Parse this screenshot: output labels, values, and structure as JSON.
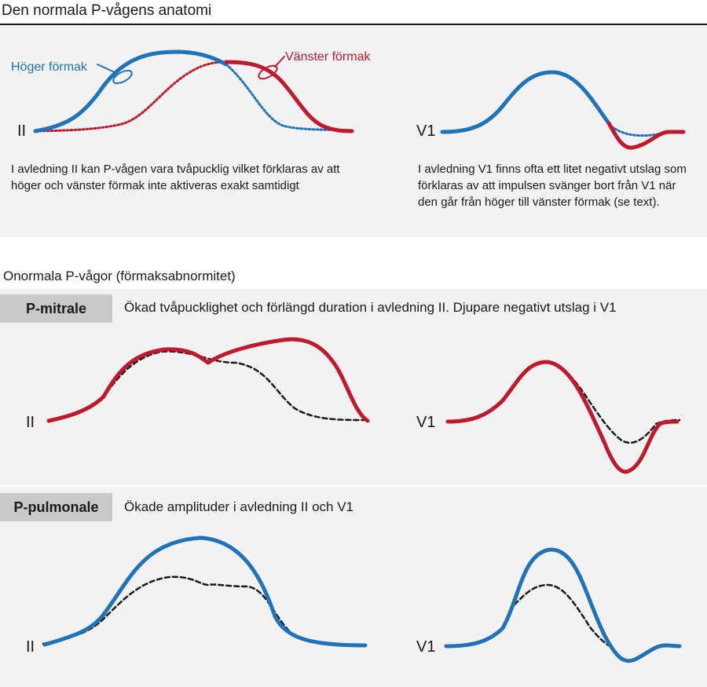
{
  "header": {
    "title": "Den normala P-vågens anatomi"
  },
  "normal": {
    "left_lead": "II",
    "right_lead": "V1",
    "label_right_atrium": "Höger förmak",
    "label_left_atrium": "Vänster förmak",
    "note_left": "I avledning II kan P-vågen vara tvåpucklig vilket förklaras av att höger och vänster förmak inte aktiveras exakt samtidigt",
    "note_right": "I avledning V1 finns ofta ett litet negativt utslag som förklaras av att impulsen svänger bort från V1 när den går från höger till vänster förmak (se text)."
  },
  "abnormal": {
    "title": "Onormala P-vågor (förmaksabnormitet)",
    "p_mitrale": {
      "tag": "P-mitrale",
      "description": "Ökad tvåpucklighet och förlängd duration i avledning II. Djupare negativt utslag i V1",
      "left_lead": "II",
      "right_lead": "V1"
    },
    "p_pulmonale": {
      "tag": "P-pulmonale",
      "description": "Ökade amplituder i avledning II och V1",
      "left_lead": "II",
      "right_lead": "V1"
    }
  },
  "colors": {
    "right_atrium": "#1f73b8",
    "left_atrium": "#c0192e",
    "reference": "#1a1a1a",
    "panel_bg": "#f2f2f2",
    "tag_bg": "#c9c9c9"
  }
}
